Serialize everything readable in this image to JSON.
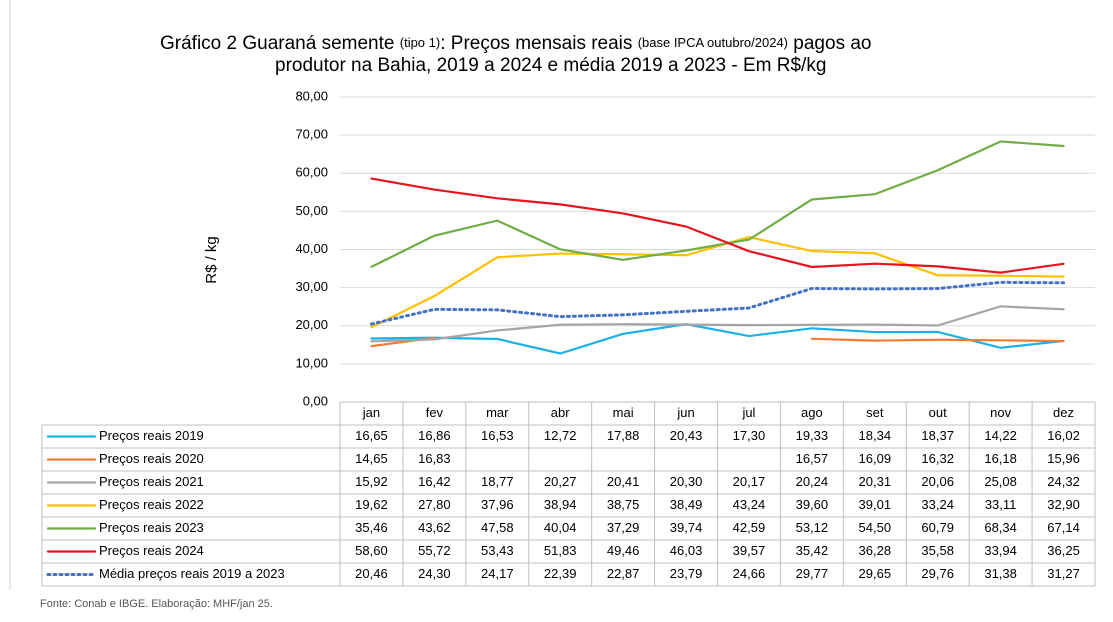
{
  "chart_data": {
    "type": "line",
    "title": [
      "Gráfico 2   Guaraná semente",
      "(tipo 1)",
      ": Preços mensais reais",
      "(base IPCA outubro/2024)",
      "pagos ao",
      "produtor na Bahia, 2019 a 2024 e média 2019 a 2023 -  Em R$/kg"
    ],
    "ylabel": "R$ / kg",
    "source": "Fonte: Conab e IBGE.  Elaboração: MHF/jan 25.",
    "categories": [
      "jan",
      "fev",
      "mar",
      "abr",
      "mai",
      "jun",
      "jul",
      "ago",
      "set",
      "out",
      "nov",
      "dez"
    ],
    "ylim": [
      0,
      80
    ],
    "yticks": [
      {
        "value": 0,
        "label": "0,00"
      },
      {
        "value": 10,
        "label": "10,00"
      },
      {
        "value": 20,
        "label": "20,00"
      },
      {
        "value": 30,
        "label": "30,00"
      },
      {
        "value": 40,
        "label": "40,00"
      },
      {
        "value": 50,
        "label": "50,00"
      },
      {
        "value": 60,
        "label": "60,00"
      },
      {
        "value": 70,
        "label": "70,00"
      },
      {
        "value": 80,
        "label": "80,00"
      }
    ],
    "grid": true,
    "series": [
      {
        "name": "Preços reais 2019",
        "color": "#1ab0e8",
        "style": "solid",
        "values": [
          16.65,
          16.86,
          16.53,
          12.72,
          17.88,
          20.43,
          17.3,
          19.33,
          18.34,
          18.37,
          14.22,
          16.02
        ],
        "value_labels": [
          "16,65",
          "16,86",
          "16,53",
          "12,72",
          "17,88",
          "20,43",
          "17,30",
          "19,33",
          "18,34",
          "18,37",
          "14,22",
          "16,02"
        ]
      },
      {
        "name": "Preços reais 2020",
        "color": "#f07c35",
        "style": "solid",
        "values": [
          14.65,
          16.83,
          null,
          null,
          null,
          null,
          null,
          16.57,
          16.09,
          16.32,
          16.18,
          15.96
        ],
        "value_labels": [
          "14,65",
          "16,83",
          null,
          null,
          null,
          null,
          null,
          "16,57",
          "16,09",
          "16,32",
          "16,18",
          "15,96"
        ]
      },
      {
        "name": "Preços reais 2021",
        "color": "#a5a5a5",
        "style": "solid",
        "values": [
          15.92,
          16.42,
          18.77,
          20.27,
          20.41,
          20.3,
          20.17,
          20.24,
          20.31,
          20.06,
          25.08,
          24.32
        ],
        "value_labels": [
          "15,92",
          "16,42",
          "18,77",
          "20,27",
          "20,41",
          "20,30",
          "20,17",
          "20,24",
          "20,31",
          "20,06",
          "25,08",
          "24,32"
        ]
      },
      {
        "name": "Preços reais 2022",
        "color": "#ffc000",
        "style": "solid",
        "values": [
          19.62,
          27.8,
          37.96,
          38.94,
          38.75,
          38.49,
          43.24,
          39.6,
          39.01,
          33.24,
          33.11,
          32.9
        ],
        "value_labels": [
          "19,62",
          "27,80",
          "37,96",
          "38,94",
          "38,75",
          "38,49",
          "43,24",
          "39,60",
          "39,01",
          "33,24",
          "33,11",
          "32,90"
        ]
      },
      {
        "name": "Preços reais 2023",
        "color": "#70ad47",
        "style": "solid",
        "values": [
          35.46,
          43.62,
          47.58,
          40.04,
          37.29,
          39.74,
          42.59,
          53.12,
          54.5,
          60.79,
          68.34,
          67.14
        ],
        "value_labels": [
          "35,46",
          "43,62",
          "47,58",
          "40,04",
          "37,29",
          "39,74",
          "42,59",
          "53,12",
          "54,50",
          "60,79",
          "68,34",
          "67,14"
        ]
      },
      {
        "name": "Preços reais 2024",
        "color": "#e8141c",
        "style": "solid",
        "values": [
          58.6,
          55.72,
          53.43,
          51.83,
          49.46,
          46.03,
          39.57,
          35.42,
          36.28,
          35.58,
          33.94,
          36.25
        ],
        "value_labels": [
          "58,60",
          "55,72",
          "53,43",
          "51,83",
          "49,46",
          "46,03",
          "39,57",
          "35,42",
          "36,28",
          "35,58",
          "33,94",
          "36,25"
        ]
      },
      {
        "name": "Média preços reais 2019 a 2023",
        "color": "#4472c4",
        "style": "dotted",
        "values": [
          20.46,
          24.3,
          24.17,
          22.39,
          22.87,
          23.79,
          24.66,
          29.77,
          29.65,
          29.76,
          31.38,
          31.27
        ],
        "value_labels": [
          "20,46",
          "24,30",
          "24,17",
          "22,39",
          "22,87",
          "23,79",
          "24,66",
          "29,77",
          "29,65",
          "29,76",
          "31,38",
          "31,27"
        ]
      }
    ]
  }
}
